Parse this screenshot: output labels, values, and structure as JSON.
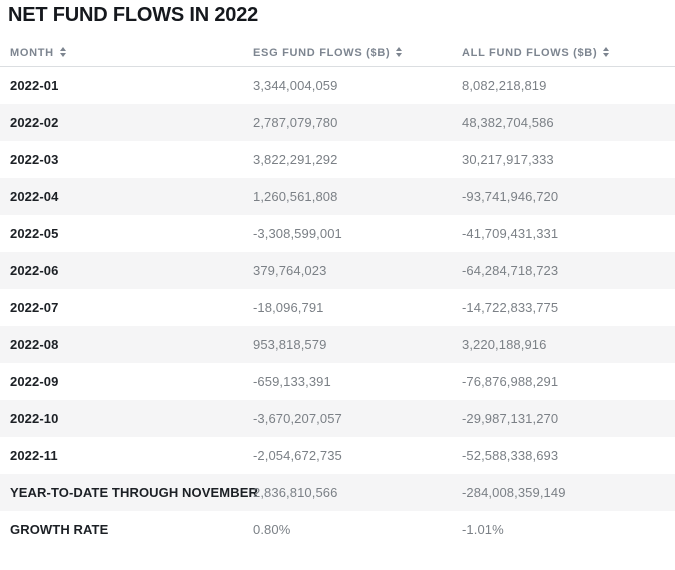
{
  "page": {
    "title": "NET FUND FLOWS IN 2022"
  },
  "table": {
    "columns": [
      {
        "label": "MONTH"
      },
      {
        "label": "ESG FUND FLOWS ($B)"
      },
      {
        "label": "ALL FUND FLOWS ($B)"
      }
    ],
    "rows": [
      {
        "month": "2022-01",
        "esg": "3,344,004,059",
        "all": "8,082,218,819"
      },
      {
        "month": "2022-02",
        "esg": "2,787,079,780",
        "all": "48,382,704,586"
      },
      {
        "month": "2022-03",
        "esg": "3,822,291,292",
        "all": "30,217,917,333"
      },
      {
        "month": "2022-04",
        "esg": "1,260,561,808",
        "all": "-93,741,946,720"
      },
      {
        "month": "2022-05",
        "esg": "-3,308,599,001",
        "all": "-41,709,431,331"
      },
      {
        "month": "2022-06",
        "esg": "379,764,023",
        "all": "-64,284,718,723"
      },
      {
        "month": "2022-07",
        "esg": "-18,096,791",
        "all": "-14,722,833,775"
      },
      {
        "month": "2022-08",
        "esg": "953,818,579",
        "all": "3,220,188,916"
      },
      {
        "month": "2022-09",
        "esg": "-659,133,391",
        "all": "-76,876,988,291"
      },
      {
        "month": "2022-10",
        "esg": "-3,670,207,057",
        "all": "-29,987,131,270"
      },
      {
        "month": "2022-11",
        "esg": "-2,054,672,735",
        "all": "-52,588,338,693"
      },
      {
        "month": "YEAR-TO-DATE THROUGH NOVEMBER",
        "esg": "2,836,810,566",
        "all": "-284,008,359,149"
      },
      {
        "month": "GROWTH RATE",
        "esg": "0.80%",
        "all": "-1.01%"
      }
    ]
  },
  "colors": {
    "title_color": "#15181d",
    "header_text": "#7d8590",
    "row_label": "#1c2025",
    "value_text": "#7b8086",
    "alt_row_bg": "#f5f5f6",
    "header_border": "#dbdee1"
  }
}
